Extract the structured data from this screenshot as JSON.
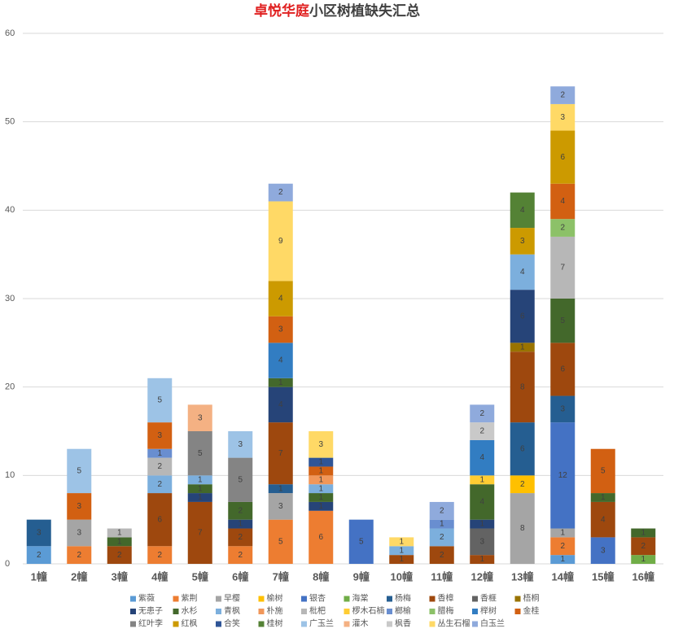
{
  "chart_data": {
    "type": "stacked_bar",
    "title": {
      "highlight": "卓悦华庭",
      "rest": "小区树植缺失汇总"
    },
    "categories": [
      "1幢",
      "2幢",
      "3幢",
      "4幢",
      "5幢",
      "6幢",
      "7幢",
      "8幢",
      "9幢",
      "10幢",
      "11幢",
      "12幢",
      "13幢",
      "14幢",
      "15幢",
      "16幢"
    ],
    "ylim": [
      0,
      60
    ],
    "yticks": [
      0,
      10,
      20,
      30,
      40,
      50,
      60
    ],
    "grid": true,
    "legend": "bottom",
    "series": [
      {
        "name": "紫薇",
        "color": "#5b9bd5",
        "values": [
          2,
          null,
          null,
          null,
          null,
          null,
          null,
          null,
          null,
          null,
          null,
          null,
          null,
          1,
          null,
          null
        ]
      },
      {
        "name": "紫荆",
        "color": "#ed7d31",
        "values": [
          null,
          2,
          null,
          2,
          null,
          2,
          5,
          6,
          null,
          null,
          null,
          null,
          null,
          2,
          null,
          null
        ]
      },
      {
        "name": "早樱",
        "color": "#a5a5a5",
        "values": [
          null,
          3,
          null,
          null,
          null,
          null,
          3,
          null,
          null,
          null,
          null,
          null,
          8,
          1,
          null,
          null
        ]
      },
      {
        "name": "榆树",
        "color": "#ffc000",
        "values": [
          null,
          null,
          null,
          null,
          null,
          null,
          null,
          null,
          null,
          null,
          null,
          null,
          2,
          null,
          null,
          null
        ]
      },
      {
        "name": "银杏",
        "color": "#4472c4",
        "values": [
          null,
          null,
          null,
          null,
          null,
          null,
          null,
          null,
          5,
          null,
          null,
          null,
          null,
          12,
          3,
          null
        ]
      },
      {
        "name": "海棠",
        "color": "#70ad47",
        "values": [
          null,
          null,
          null,
          null,
          null,
          null,
          null,
          null,
          null,
          null,
          null,
          null,
          null,
          null,
          null,
          1
        ]
      },
      {
        "name": "杨梅",
        "color": "#255e91",
        "values": [
          3,
          null,
          null,
          null,
          null,
          null,
          1,
          null,
          null,
          null,
          null,
          null,
          6,
          3,
          null,
          null
        ]
      },
      {
        "name": "香樟",
        "color": "#9e480e",
        "values": [
          null,
          null,
          2,
          6,
          7,
          2,
          7,
          null,
          null,
          1,
          2,
          1,
          8,
          6,
          4,
          2
        ]
      },
      {
        "name": "香榧",
        "color": "#636363",
        "values": [
          null,
          null,
          null,
          null,
          null,
          null,
          null,
          null,
          null,
          null,
          null,
          3,
          null,
          null,
          null,
          null
        ]
      },
      {
        "name": "梧桐",
        "color": "#997300",
        "values": [
          null,
          null,
          null,
          null,
          null,
          null,
          null,
          null,
          null,
          null,
          null,
          null,
          1,
          null,
          null,
          null
        ]
      },
      {
        "name": "无患子",
        "color": "#264478",
        "values": [
          null,
          null,
          null,
          null,
          1,
          1,
          4,
          1,
          null,
          null,
          null,
          1,
          6,
          null,
          null,
          null
        ]
      },
      {
        "name": "水杉",
        "color": "#43682b",
        "values": [
          null,
          null,
          1,
          null,
          1,
          2,
          1,
          1,
          null,
          null,
          null,
          4,
          null,
          5,
          1,
          1
        ]
      },
      {
        "name": "青枫",
        "color": "#7cafdd",
        "values": [
          null,
          null,
          null,
          2,
          1,
          null,
          null,
          1,
          null,
          1,
          2,
          null,
          4,
          null,
          null,
          null
        ]
      },
      {
        "name": "朴施",
        "color": "#f1975a",
        "values": [
          null,
          null,
          null,
          null,
          null,
          null,
          null,
          1,
          null,
          null,
          null,
          null,
          null,
          null,
          null,
          null
        ]
      },
      {
        "name": "枇杷",
        "color": "#b7b7b7",
        "values": [
          null,
          null,
          1,
          2,
          null,
          null,
          null,
          null,
          null,
          null,
          null,
          null,
          null,
          7,
          null,
          null
        ]
      },
      {
        "name": "椤木石楠",
        "color": "#ffcd33",
        "values": [
          null,
          null,
          null,
          null,
          null,
          null,
          null,
          null,
          null,
          null,
          null,
          1,
          null,
          null,
          null,
          null
        ]
      },
      {
        "name": "榔榆",
        "color": "#698ed0",
        "values": [
          null,
          null,
          null,
          1,
          null,
          null,
          null,
          null,
          null,
          null,
          1,
          null,
          null,
          null,
          null,
          null
        ]
      },
      {
        "name": "腊梅",
        "color": "#8cc168",
        "values": [
          null,
          null,
          null,
          null,
          null,
          null,
          null,
          null,
          null,
          null,
          null,
          null,
          null,
          2,
          null,
          null
        ]
      },
      {
        "name": "榉树",
        "color": "#327dc2",
        "values": [
          null,
          null,
          null,
          null,
          null,
          null,
          4,
          null,
          null,
          null,
          null,
          4,
          null,
          null,
          null,
          null
        ]
      },
      {
        "name": "金桂",
        "color": "#d26012",
        "values": [
          null,
          3,
          null,
          3,
          null,
          null,
          3,
          1,
          null,
          null,
          null,
          null,
          null,
          4,
          5,
          null
        ]
      },
      {
        "name": "红叶李",
        "color": "#848484",
        "values": [
          null,
          null,
          null,
          null,
          5,
          5,
          null,
          null,
          null,
          null,
          null,
          null,
          null,
          null,
          null,
          null
        ]
      },
      {
        "name": "红枫",
        "color": "#cc9a00",
        "values": [
          null,
          null,
          null,
          null,
          null,
          null,
          4,
          null,
          null,
          null,
          null,
          null,
          3,
          6,
          null,
          null
        ]
      },
      {
        "name": "合笑",
        "color": "#2f5597",
        "values": [
          null,
          null,
          null,
          null,
          null,
          null,
          null,
          1,
          null,
          null,
          null,
          null,
          null,
          null,
          null,
          null
        ]
      },
      {
        "name": "桂树",
        "color": "#548235",
        "values": [
          null,
          null,
          null,
          null,
          null,
          null,
          null,
          null,
          null,
          null,
          null,
          null,
          4,
          null,
          null,
          null
        ]
      },
      {
        "name": "广玉兰",
        "color": "#9dc3e6",
        "values": [
          null,
          5,
          null,
          5,
          null,
          3,
          null,
          null,
          null,
          null,
          null,
          null,
          null,
          null,
          null,
          null
        ]
      },
      {
        "name": "灌木",
        "color": "#f4b183",
        "values": [
          null,
          null,
          null,
          null,
          3,
          null,
          null,
          null,
          null,
          null,
          null,
          null,
          null,
          null,
          null,
          null
        ]
      },
      {
        "name": "枫香",
        "color": "#c9c9c9",
        "values": [
          null,
          null,
          null,
          null,
          null,
          null,
          null,
          null,
          null,
          null,
          null,
          2,
          null,
          null,
          null,
          null
        ]
      },
      {
        "name": "丛生石榴",
        "color": "#ffd966",
        "values": [
          null,
          null,
          null,
          null,
          null,
          null,
          9,
          3,
          null,
          1,
          null,
          null,
          null,
          3,
          null,
          null
        ]
      },
      {
        "name": "白玉兰",
        "color": "#8faadc",
        "values": [
          null,
          null,
          null,
          null,
          null,
          null,
          2,
          null,
          null,
          null,
          2,
          2,
          null,
          2,
          null,
          null
        ]
      }
    ]
  }
}
